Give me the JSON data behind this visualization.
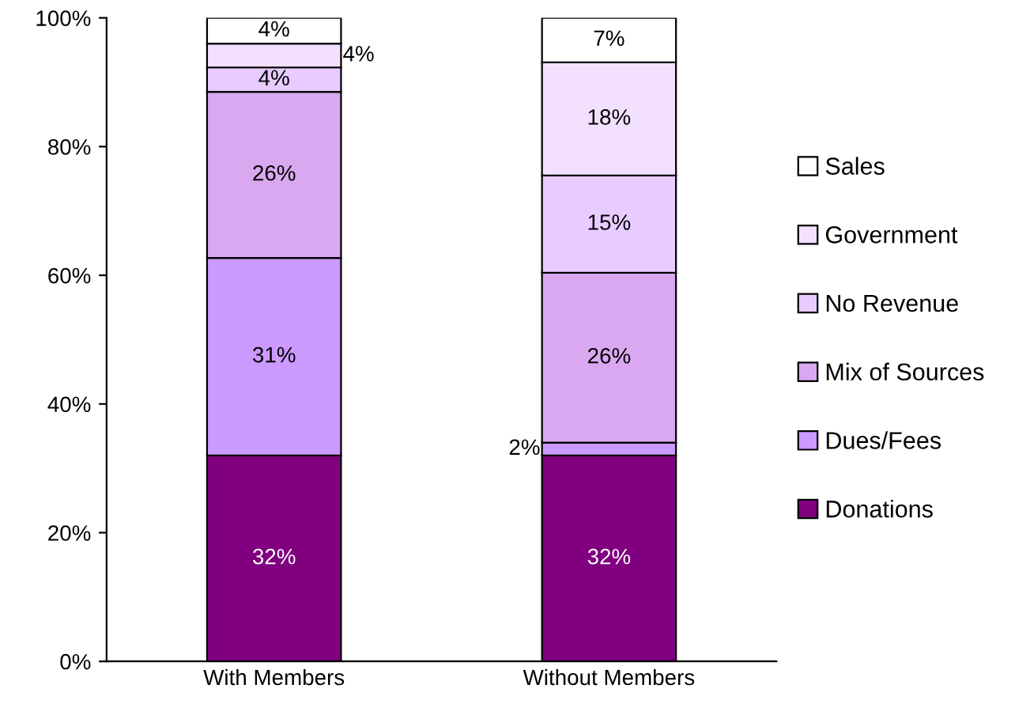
{
  "chart_data": {
    "type": "bar",
    "stacked": true,
    "categories": [
      "With Members",
      "Without Members"
    ],
    "series": [
      {
        "name": "Donations",
        "color": "#800080",
        "values": [
          32,
          32
        ],
        "value_labels": [
          "32%",
          "32%"
        ]
      },
      {
        "name": "Dues/Fees",
        "color": "#cc99ff",
        "values": [
          30.7,
          2
        ],
        "value_labels": [
          "31%",
          "2%"
        ]
      },
      {
        "name": "Mix of Sources",
        "color": "#d9a8f0",
        "values": [
          25.8,
          26.4
        ],
        "value_labels": [
          "26%",
          "26%"
        ]
      },
      {
        "name": "No Revenue",
        "color": "#e8ccff",
        "values": [
          3.8,
          15.1
        ],
        "value_labels": [
          "4%",
          "15%"
        ]
      },
      {
        "name": "Government",
        "color": "#f3e0ff",
        "values": [
          3.7,
          17.6
        ],
        "value_labels": [
          "4%",
          "18%"
        ]
      },
      {
        "name": "Sales",
        "color": "#ffffff",
        "values": [
          4,
          6.9
        ],
        "value_labels": [
          "4%",
          "7%"
        ]
      }
    ],
    "ylim": [
      0,
      100
    ],
    "yticks": [
      {
        "value": 0,
        "label": "0%"
      },
      {
        "value": 20,
        "label": "20%"
      },
      {
        "value": 40,
        "label": "40%"
      },
      {
        "value": 60,
        "label": "60%"
      },
      {
        "value": 80,
        "label": "80%"
      },
      {
        "value": 100,
        "label": "100%"
      }
    ],
    "grid": false,
    "legend": "right"
  }
}
